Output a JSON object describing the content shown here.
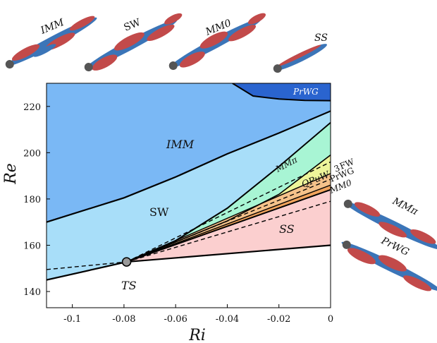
{
  "chart_data": {
    "type": "area",
    "xlabel": "Ri",
    "ylabel": "Re",
    "xlim": [
      -0.11,
      0.0
    ],
    "ylim": [
      133,
      230
    ],
    "xticks": [
      -0.1,
      -0.08,
      -0.06,
      -0.04,
      -0.02,
      0
    ],
    "xtick_labels": [
      "-0.1",
      "-0.08",
      "-0.06",
      "-0.04",
      "-0.02",
      "0"
    ],
    "yticks": [
      140,
      160,
      180,
      200,
      220
    ],
    "ytick_labels": [
      "140",
      "160",
      "180",
      "200",
      "220"
    ],
    "grid": false,
    "tricritical_point": {
      "x": -0.079,
      "y": 152.8,
      "label": "TS"
    },
    "boundaries": [
      {
        "name": "IMM-SW",
        "x": [
          -0.11,
          -0.08,
          -0.06,
          -0.04,
          -0.02,
          0.0
        ],
        "y": [
          170,
          180.5,
          189.5,
          199.5,
          208.5,
          218
        ]
      },
      {
        "name": "TS-SW",
        "x": [
          -0.11,
          -0.079
        ],
        "y": [
          145,
          152.8
        ]
      },
      {
        "name": "TS-SS",
        "x": [
          -0.079,
          0.0
        ],
        "y": [
          152.8,
          160
        ]
      },
      {
        "name": "SW-MMpi",
        "x": [
          -0.079,
          -0.06,
          -0.04,
          -0.02,
          0.0
        ],
        "y": [
          152.8,
          162,
          176,
          194,
          213
        ]
      },
      {
        "name": "MMpi-FW",
        "x": [
          -0.079,
          -0.04,
          -0.02,
          0.0
        ],
        "y": [
          152.8,
          170.5,
          182,
          199
        ]
      },
      {
        "name": "FW-PrWG",
        "x": [
          -0.079,
          0.0
        ],
        "y": [
          152.8,
          191
        ]
      },
      {
        "name": "PrWG-MM0",
        "x": [
          -0.079,
          0.0
        ],
        "y": [
          152.8,
          186
        ]
      },
      {
        "name": "MM0-SS",
        "x": [
          -0.079,
          0.0
        ],
        "y": [
          152.8,
          184
        ]
      },
      {
        "name": "PrWG-top",
        "x": [
          -0.038,
          -0.03,
          -0.02,
          -0.01,
          0.0
        ],
        "y": [
          230,
          224.5,
          223.2,
          222.6,
          222.5
        ]
      }
    ],
    "dashed_lines": [
      {
        "x": [
          -0.11,
          -0.079
        ],
        "y": [
          149.5,
          152.8
        ]
      },
      {
        "x": [
          -0.079,
          0.0
        ],
        "y": [
          152.8,
          179
        ]
      },
      {
        "x": [
          -0.079,
          0.0
        ],
        "y": [
          152.8,
          188.5
        ]
      },
      {
        "x": [
          -0.079,
          0.0
        ],
        "y": [
          152.8,
          196
        ]
      }
    ],
    "regions": [
      {
        "name": "IMM",
        "label": "IMM",
        "color": "#7ab8f5"
      },
      {
        "name": "SW",
        "label": "SW",
        "color": "#a8def9"
      },
      {
        "name": "MMpi",
        "label": "MMπ",
        "color": "#a8f5d4"
      },
      {
        "name": "FW",
        "label": "FW",
        "color": "#eef59a"
      },
      {
        "name": "PrWG-wedge",
        "label": "PrWG",
        "color": "#f5c28a"
      },
      {
        "name": "MM0-wedge",
        "label": "MM0",
        "color": "#f0a35c"
      },
      {
        "name": "SS",
        "label": "SS",
        "color": "#fbcfcf"
      },
      {
        "name": "PrWG-top",
        "label": "PrWG",
        "color": "#2a64cf"
      },
      {
        "name": "TS",
        "label": "TS",
        "color": "#ffffff"
      }
    ]
  },
  "labels": {
    "imm": "IMM",
    "sw": "SW",
    "ss": "SS",
    "ts": "TS",
    "mmpi": "MMπ",
    "fw": "FW",
    "prwg_small": "PrWG",
    "mm0": "MM0",
    "prwg_top": "PrWG",
    "qpuw": "QPuW",
    "wedge_3": "3",
    "thumb_imm": "IMM",
    "thumb_sw": "SW",
    "thumb_mm0": "MM0",
    "thumb_ss": "SS",
    "thumb_mmpi": "MMπ",
    "thumb_prwg": "PrWG"
  },
  "colors": {
    "wake_blue": "#3b75b8",
    "wake_red": "#c24a4a",
    "sphere": "#555555"
  }
}
